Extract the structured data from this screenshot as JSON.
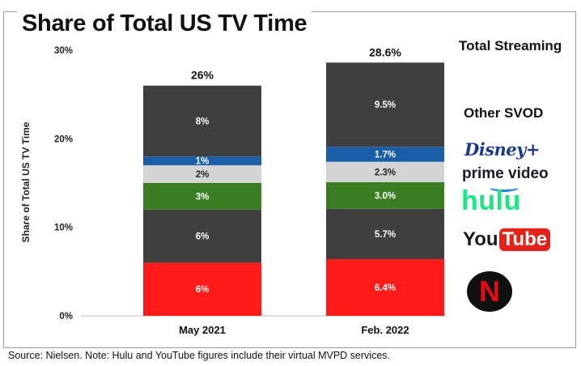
{
  "chart_data": {
    "type": "bar",
    "stacked": true,
    "title": "Share of Total US TV Time",
    "ylabel": "Share of Total US TV Time",
    "xlabel": "",
    "ylim": [
      0,
      30
    ],
    "yticks": [
      0,
      10,
      20,
      30
    ],
    "ytick_labels": [
      "0%",
      "10%",
      "20%",
      "30%"
    ],
    "categories": [
      "May 2021",
      "Feb. 2022"
    ],
    "totals": [
      26,
      28.6
    ],
    "total_labels": [
      "26%",
      "28.6%"
    ],
    "series": [
      {
        "name": "Netflix",
        "color": "#ff1a1a",
        "values": [
          6,
          6.4
        ],
        "labels": [
          "6%",
          "6.4%"
        ]
      },
      {
        "name": "YouTube",
        "color": "#404040",
        "values": [
          6,
          5.7
        ],
        "labels": [
          "6%",
          "5.7%"
        ]
      },
      {
        "name": "Hulu",
        "color": "#3b7d23",
        "values": [
          3,
          3.0
        ],
        "labels": [
          "3%",
          "3.0%"
        ]
      },
      {
        "name": "Prime Video",
        "color": "#d4d4d4",
        "values": [
          2,
          2.3
        ],
        "labels": [
          "2%",
          "2.3%"
        ]
      },
      {
        "name": "Disney+",
        "color": "#1b5ea8",
        "values": [
          1,
          1.7
        ],
        "labels": [
          "1%",
          "1.7%"
        ]
      },
      {
        "name": "Other SVOD",
        "color": "#404040",
        "values": [
          8,
          9.5
        ],
        "labels": [
          "8%",
          "9.5%"
        ]
      }
    ],
    "legend": {
      "title": "Total Streaming",
      "subtitle": "Other SVOD",
      "logos": [
        "Disney+",
        "prime video",
        "hulu",
        "YouTube",
        "N"
      ]
    }
  },
  "logos": {
    "disney": "Disney+",
    "prime": "prime video",
    "hulu": "hulu",
    "youtube_you": "You",
    "youtube_tube": "Tube",
    "netflix": "N"
  },
  "source_note": "Source: Nielsen. Note: Hulu and YouTube figures include their virtual MVPD services."
}
